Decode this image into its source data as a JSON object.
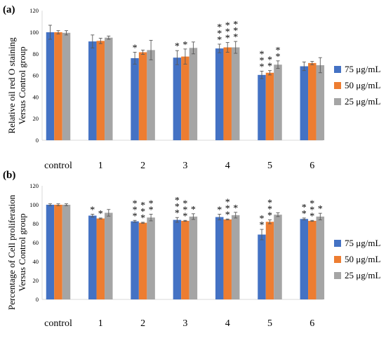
{
  "figure": {
    "panels": [
      {
        "label": "(a)",
        "ylabel_lines": [
          "Relative oil red O staining",
          "Versus Control group"
        ]
      },
      {
        "label": "(b)",
        "ylabel_lines": [
          "Percentage of Cell proliferation",
          "Versus Control group"
        ]
      }
    ]
  },
  "colors": {
    "75 μg/mL": "#4472C4",
    "50 μg/mL": "#ED7D31",
    "25 μg/mL": "#A5A5A5"
  },
  "chart_data": [
    {
      "type": "bar",
      "title": "(a)",
      "ylabel": "Relative oil red O staining Versus Control group",
      "xlabel": "",
      "categories": [
        "control",
        "1",
        "2",
        "3",
        "4",
        "5",
        "6"
      ],
      "ylim": [
        0,
        120
      ],
      "yticks": [
        0,
        20,
        40,
        60,
        80,
        100,
        120
      ],
      "grid": false,
      "legend_position": "right",
      "series": [
        {
          "name": "75 μg/mL",
          "values": [
            100,
            91.5,
            76,
            76.5,
            85,
            60.5,
            68.5
          ],
          "errors": [
            6.5,
            6,
            5.5,
            6.5,
            4,
            3.5,
            4
          ],
          "stars": [
            "",
            "",
            "*",
            "*",
            "***",
            "***",
            ""
          ]
        },
        {
          "name": "50 μg/mL",
          "values": [
            100,
            92,
            81.5,
            77.5,
            86,
            62.5,
            71.5
          ],
          "errors": [
            1.5,
            2.5,
            2,
            7,
            4.5,
            2,
            1.5
          ],
          "stars": [
            "",
            "",
            "",
            "*",
            "***",
            "**",
            ""
          ]
        },
        {
          "name": "25 μg/mL",
          "values": [
            99.5,
            95,
            83.5,
            85.5,
            86,
            70,
            69.5
          ],
          "errors": [
            2,
            1.5,
            9,
            5.5,
            5.5,
            3.5,
            7
          ],
          "stars": [
            "",
            "",
            "",
            "",
            "***",
            "**",
            ""
          ]
        }
      ]
    },
    {
      "type": "bar",
      "title": "(b)",
      "ylabel": "Percentage of Cell proliferation Versus Control group",
      "xlabel": "",
      "categories": [
        "control",
        "1",
        "2",
        "3",
        "4",
        "5",
        "6"
      ],
      "ylim": [
        0,
        120
      ],
      "yticks": [
        0,
        20,
        40,
        60,
        80,
        100,
        120
      ],
      "grid": false,
      "legend_position": "right",
      "series": [
        {
          "name": "75 μg/mL",
          "values": [
            100,
            88.5,
            82.5,
            84,
            87,
            68.5,
            85
          ],
          "errors": [
            1,
            1.5,
            1,
            2.5,
            3,
            5.5,
            1
          ],
          "stars": [
            "",
            "*",
            "***",
            "***",
            "*",
            "**",
            "**"
          ]
        },
        {
          "name": "50 μg/mL",
          "values": [
            100,
            85.5,
            81,
            83,
            84.5,
            82,
            83
          ],
          "errors": [
            1,
            0.5,
            0.5,
            0.5,
            0.5,
            2,
            0.5
          ],
          "stars": [
            "",
            "*",
            "***",
            "***",
            "***",
            "***",
            "***"
          ]
        },
        {
          "name": "25 μg/mL",
          "values": [
            100,
            91.5,
            86.5,
            87.5,
            89,
            89.5,
            87.5
          ],
          "errors": [
            1,
            3.5,
            3.5,
            3,
            3,
            2,
            3.5
          ],
          "stars": [
            "",
            "",
            "**",
            "*",
            "*",
            "",
            "*"
          ]
        }
      ]
    }
  ]
}
